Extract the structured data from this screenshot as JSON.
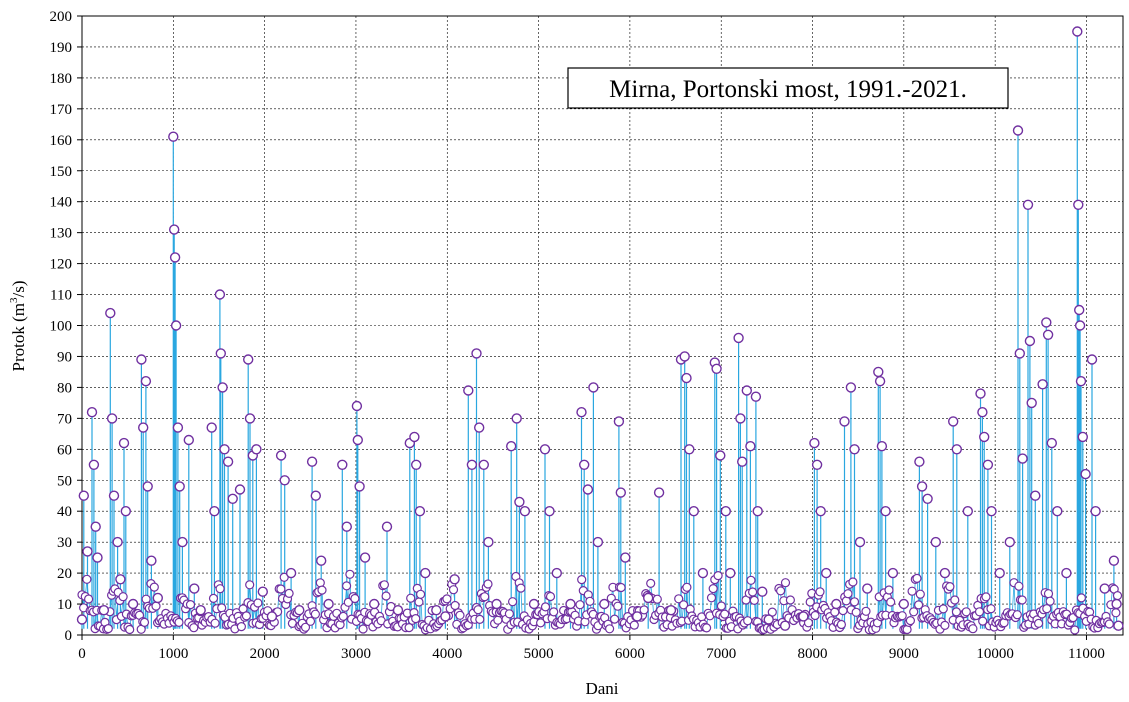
{
  "chart_data": {
    "type": "line",
    "title": "Mirna, Portonski most, 1991.-2021.",
    "xlabel": "Dani",
    "ylabel_prefix": "Protok (m",
    "ylabel_sup": "3",
    "ylabel_suffix": "/s)",
    "xlim": [
      0,
      11400
    ],
    "ylim": [
      0,
      200
    ],
    "x_ticks": [
      "0",
      "1000",
      "2000",
      "3000",
      "4000",
      "5000",
      "6000",
      "7000",
      "8000",
      "9000",
      "10000",
      "11000"
    ],
    "y_ticks": [
      "0",
      "10",
      "20",
      "30",
      "40",
      "50",
      "60",
      "70",
      "80",
      "90",
      "100",
      "110",
      "120",
      "130",
      "140",
      "150",
      "160",
      "170",
      "180",
      "190",
      "200"
    ],
    "grid": true,
    "colors": {
      "line": "#2aa7e0",
      "marker": "#7030a0",
      "marker_fill": "#ffffff"
    },
    "series": [
      {
        "values": [
          [
            0,
            5
          ],
          [
            20,
            45
          ],
          [
            60,
            27
          ],
          [
            110,
            72
          ],
          [
            130,
            55
          ],
          [
            150,
            35
          ],
          [
            170,
            25
          ],
          [
            240,
            8
          ],
          [
            310,
            104
          ],
          [
            330,
            70
          ],
          [
            350,
            45
          ],
          [
            390,
            30
          ],
          [
            420,
            18
          ],
          [
            460,
            62
          ],
          [
            480,
            40
          ],
          [
            560,
            10
          ],
          [
            650,
            89
          ],
          [
            670,
            67
          ],
          [
            700,
            82
          ],
          [
            720,
            48
          ],
          [
            760,
            24
          ],
          [
            830,
            12
          ],
          [
            1000,
            161
          ],
          [
            1010,
            131
          ],
          [
            1020,
            122
          ],
          [
            1030,
            100
          ],
          [
            1050,
            67
          ],
          [
            1070,
            48
          ],
          [
            1100,
            30
          ],
          [
            1170,
            63
          ],
          [
            1230,
            15
          ],
          [
            1300,
            8
          ],
          [
            1420,
            67
          ],
          [
            1450,
            40
          ],
          [
            1510,
            110
          ],
          [
            1520,
            91
          ],
          [
            1540,
            80
          ],
          [
            1560,
            60
          ],
          [
            1600,
            56
          ],
          [
            1650,
            44
          ],
          [
            1730,
            47
          ],
          [
            1820,
            89
          ],
          [
            1840,
            70
          ],
          [
            1870,
            58
          ],
          [
            1910,
            60
          ],
          [
            1980,
            14
          ],
          [
            2080,
            6
          ],
          [
            2180,
            58
          ],
          [
            2220,
            50
          ],
          [
            2290,
            20
          ],
          [
            2380,
            8
          ],
          [
            2520,
            56
          ],
          [
            2560,
            45
          ],
          [
            2620,
            24
          ],
          [
            2700,
            10
          ],
          [
            2850,
            55
          ],
          [
            2900,
            35
          ],
          [
            3010,
            74
          ],
          [
            3020,
            63
          ],
          [
            3040,
            48
          ],
          [
            3100,
            25
          ],
          [
            3200,
            10
          ],
          [
            3340,
            35
          ],
          [
            3460,
            8
          ],
          [
            3590,
            62
          ],
          [
            3640,
            64
          ],
          [
            3660,
            55
          ],
          [
            3700,
            40
          ],
          [
            3760,
            20
          ],
          [
            3880,
            8
          ],
          [
            3980,
            6
          ],
          [
            4080,
            18
          ],
          [
            4230,
            79
          ],
          [
            4270,
            55
          ],
          [
            4320,
            91
          ],
          [
            4350,
            67
          ],
          [
            4400,
            55
          ],
          [
            4450,
            30
          ],
          [
            4540,
            10
          ],
          [
            4700,
            61
          ],
          [
            4760,
            70
          ],
          [
            4790,
            43
          ],
          [
            4850,
            40
          ],
          [
            4950,
            10
          ],
          [
            5070,
            60
          ],
          [
            5120,
            40
          ],
          [
            5200,
            20
          ],
          [
            5350,
            10
          ],
          [
            5470,
            72
          ],
          [
            5500,
            55
          ],
          [
            5540,
            47
          ],
          [
            5600,
            80
          ],
          [
            5650,
            30
          ],
          [
            5720,
            10
          ],
          [
            5880,
            69
          ],
          [
            5900,
            46
          ],
          [
            5950,
            25
          ],
          [
            6080,
            6
          ],
          [
            6200,
            12
          ],
          [
            6320,
            46
          ],
          [
            6450,
            8
          ],
          [
            6560,
            89
          ],
          [
            6600,
            90
          ],
          [
            6620,
            83
          ],
          [
            6650,
            60
          ],
          [
            6700,
            40
          ],
          [
            6800,
            20
          ],
          [
            6930,
            88
          ],
          [
            6950,
            86
          ],
          [
            6990,
            58
          ],
          [
            7050,
            40
          ],
          [
            7100,
            20
          ],
          [
            7190,
            96
          ],
          [
            7210,
            70
          ],
          [
            7230,
            56
          ],
          [
            7280,
            79
          ],
          [
            7320,
            61
          ],
          [
            7380,
            77
          ],
          [
            7400,
            40
          ],
          [
            7450,
            14
          ],
          [
            7520,
            5
          ],
          [
            7700,
            3
          ],
          [
            7900,
            6
          ],
          [
            8020,
            62
          ],
          [
            8050,
            55
          ],
          [
            8090,
            40
          ],
          [
            8150,
            20
          ],
          [
            8260,
            10
          ],
          [
            8350,
            69
          ],
          [
            8420,
            80
          ],
          [
            8460,
            60
          ],
          [
            8520,
            30
          ],
          [
            8600,
            15
          ],
          [
            8720,
            85
          ],
          [
            8740,
            82
          ],
          [
            8760,
            61
          ],
          [
            8800,
            40
          ],
          [
            8880,
            20
          ],
          [
            9000,
            10
          ],
          [
            9170,
            56
          ],
          [
            9200,
            48
          ],
          [
            9260,
            44
          ],
          [
            9350,
            30
          ],
          [
            9450,
            20
          ],
          [
            9540,
            69
          ],
          [
            9580,
            60
          ],
          [
            9700,
            40
          ],
          [
            9840,
            78
          ],
          [
            9860,
            72
          ],
          [
            9880,
            64
          ],
          [
            9920,
            55
          ],
          [
            9960,
            40
          ],
          [
            10050,
            20
          ],
          [
            10160,
            30
          ],
          [
            10250,
            163
          ],
          [
            10270,
            91
          ],
          [
            10300,
            57
          ],
          [
            10360,
            139
          ],
          [
            10380,
            95
          ],
          [
            10400,
            75
          ],
          [
            10440,
            45
          ],
          [
            10520,
            81
          ],
          [
            10560,
            101
          ],
          [
            10580,
            97
          ],
          [
            10620,
            62
          ],
          [
            10680,
            40
          ],
          [
            10780,
            20
          ],
          [
            10900,
            195
          ],
          [
            10910,
            139
          ],
          [
            10920,
            105
          ],
          [
            10930,
            100
          ],
          [
            10940,
            82
          ],
          [
            10960,
            64
          ],
          [
            10990,
            52
          ],
          [
            11060,
            89
          ],
          [
            11100,
            40
          ],
          [
            11200,
            15
          ],
          [
            11300,
            24
          ],
          [
            11330,
            10
          ],
          [
            11350,
            3
          ]
        ]
      }
    ]
  }
}
